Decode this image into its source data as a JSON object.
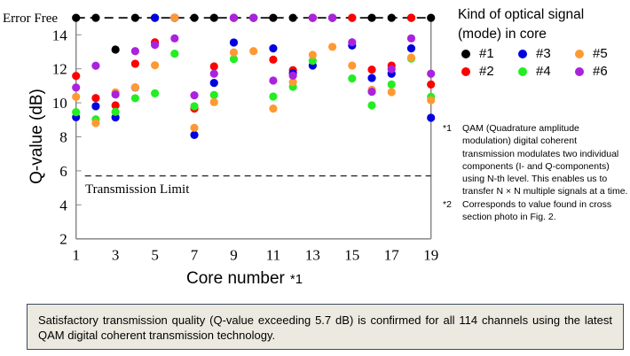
{
  "chart_data": {
    "type": "scatter",
    "xlabel": "Core number",
    "xlabel_note": "*1",
    "ylabel": "Q-value (dB)",
    "x_ticks": [
      1,
      3,
      5,
      7,
      9,
      11,
      13,
      15,
      17,
      19
    ],
    "y_ticks": [
      2,
      4,
      6,
      8,
      10,
      12,
      14
    ],
    "xlim": [
      1,
      19
    ],
    "ylim": [
      2,
      15
    ],
    "error_free_label": "Error Free",
    "error_free_level": 15.0,
    "transmission_limit_label": "Transmission Limit",
    "transmission_limit": 5.7,
    "grid": false,
    "legend_title": "Kind of optical signal (mode) in core",
    "legend_placement": "right",
    "x": [
      1,
      2,
      3,
      4,
      5,
      6,
      7,
      8,
      9,
      10,
      11,
      12,
      13,
      14,
      15,
      16,
      17,
      18,
      19
    ],
    "series": [
      {
        "name": "#1",
        "color": "#000000",
        "values": [
          "Error Free",
          "Error Free",
          13.13,
          "Error Free",
          "Error Free",
          "Error Free",
          "Error Free",
          "Error Free",
          "Error Free",
          "Error Free",
          "Error Free",
          "Error Free",
          "Error Free",
          "Error Free",
          "Error Free",
          "Error Free",
          "Error Free",
          "Error Free",
          "Error Free"
        ]
      },
      {
        "name": "#2",
        "color": "#ff0000",
        "values": [
          11.58,
          10.28,
          9.85,
          12.3,
          13.56,
          "Error Free",
          9.66,
          12.14,
          "Error Free",
          "Error Free",
          12.54,
          11.92,
          "Error Free",
          "Error Free",
          "Error Free",
          11.95,
          12.19,
          "Error Free",
          11.08
        ]
      },
      {
        "name": "#3",
        "color": "#0000e0",
        "values": [
          9.15,
          9.8,
          9.14,
          10.9,
          "Error Free",
          "Error Free",
          8.11,
          11.17,
          13.55,
          "Error Free",
          13.2,
          11.74,
          12.19,
          "Error Free",
          13.37,
          11.46,
          11.71,
          13.2,
          9.12
        ]
      },
      {
        "name": "#4",
        "color": "#22ee22",
        "values": [
          9.45,
          9.03,
          9.47,
          10.27,
          10.56,
          12.89,
          9.8,
          10.46,
          12.57,
          "Error Free",
          10.37,
          10.94,
          12.47,
          "Error Free",
          11.43,
          9.85,
          11.08,
          12.6,
          10.35
        ]
      },
      {
        "name": "#5",
        "color": "#ff9933",
        "values": [
          10.35,
          8.81,
          10.61,
          10.91,
          12.21,
          "Error Free",
          8.53,
          10.04,
          12.96,
          13.04,
          9.66,
          11.22,
          12.82,
          13.29,
          12.19,
          10.77,
          10.63,
          12.66,
          10.15
        ]
      },
      {
        "name": "#6",
        "color": "#aa22dd",
        "values": [
          10.9,
          12.18,
          10.49,
          13.04,
          13.41,
          13.79,
          10.44,
          11.71,
          "Error Free",
          "Error Free",
          11.31,
          11.6,
          "Error Free",
          "Error Free",
          13.56,
          10.65,
          11.98,
          13.79,
          11.71
        ]
      }
    ]
  },
  "notes": [
    {
      "mark": "*1",
      "text": "QAM (Quadrature amplitude modulation) digital coherent transmission modulates two individual components (I- and Q-components) using N-th level. This enables us to transfer N × N multiple signals at a time."
    },
    {
      "mark": "*2",
      "text": "Corresponds to value found in cross section photo in Fig. 2."
    }
  ],
  "caption": "Satisfactory transmission quality (Q-value exceeding 5.7 dB) is confirmed for all 114 channels using the latest QAM digital coherent transmission technology.",
  "colors": {
    "caption_bg": "#eceae0",
    "caption_border": "#3c4a5a"
  }
}
